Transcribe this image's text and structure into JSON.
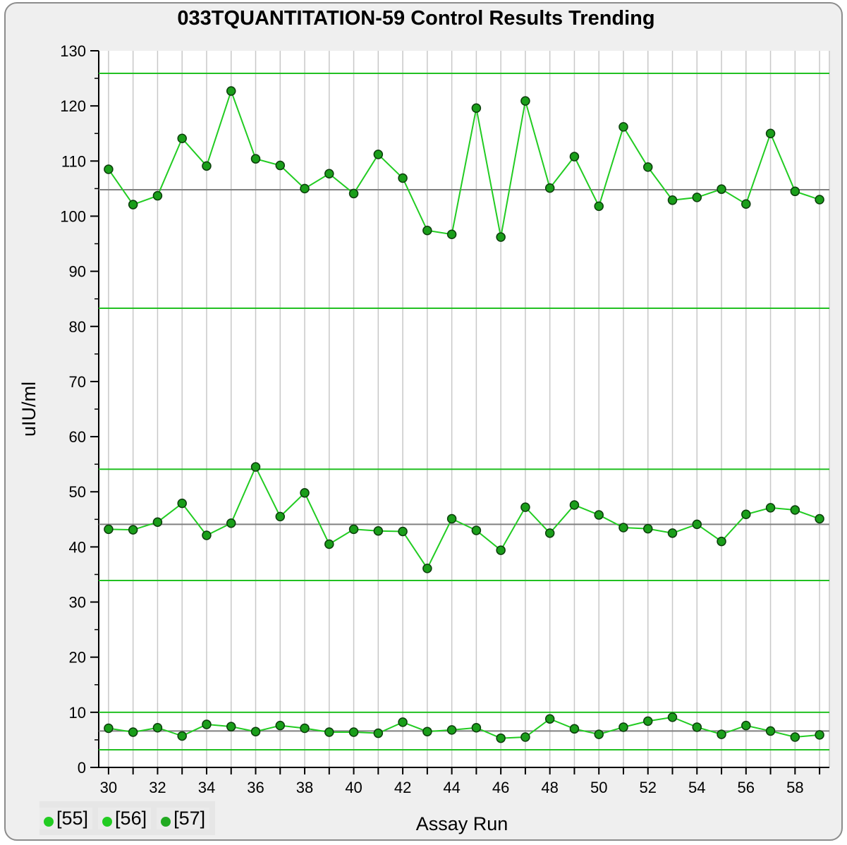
{
  "chart_data": {
    "type": "line",
    "title": "033TQUANTITATION-59 Control Results Trending",
    "xlabel": "Assay Run",
    "ylabel": "uIU/ml",
    "xlim": [
      29.6,
      59.4
    ],
    "ylim": [
      0,
      130
    ],
    "x_ticks": [
      30,
      32,
      34,
      36,
      38,
      40,
      42,
      44,
      46,
      48,
      50,
      52,
      54,
      56,
      58
    ],
    "y_ticks": [
      0,
      10,
      20,
      30,
      40,
      50,
      60,
      70,
      80,
      90,
      100,
      110,
      120,
      130
    ],
    "grid": true,
    "x": [
      30,
      31,
      32,
      33,
      34,
      35,
      36,
      37,
      38,
      39,
      40,
      41,
      42,
      43,
      44,
      45,
      46,
      47,
      48,
      49,
      50,
      51,
      52,
      53,
      54,
      55,
      56,
      57,
      58,
      59
    ],
    "series": [
      {
        "name": "[55]",
        "color": "#22cc22",
        "mean": 6.6,
        "upper_limit": 10,
        "lower_limit": 3.2,
        "values": [
          7.1,
          6.4,
          7.2,
          5.7,
          7.8,
          7.4,
          6.5,
          7.6,
          7.1,
          6.4,
          6.4,
          6.2,
          8.2,
          6.5,
          6.8,
          7.2,
          5.3,
          5.5,
          8.8,
          7.0,
          6.0,
          7.3,
          8.4,
          9.1,
          7.3,
          6.0,
          7.6,
          6.6,
          5.5,
          5.9
        ]
      },
      {
        "name": "[56]",
        "color": "#22cc22",
        "mean": 44.1,
        "upper_limit": 54.1,
        "lower_limit": 33.9,
        "values": [
          43.2,
          43.1,
          44.5,
          47.9,
          42.1,
          44.3,
          54.5,
          45.5,
          49.8,
          40.5,
          43.2,
          42.9,
          42.8,
          36.1,
          45.1,
          43.0,
          39.4,
          47.2,
          42.5,
          47.6,
          45.8,
          43.5,
          43.3,
          42.5,
          44.1,
          41.0,
          45.9,
          47.1,
          46.7,
          45.1
        ]
      },
      {
        "name": "[57]",
        "color": "#22cc22",
        "mean": 104.8,
        "upper_limit": 125.9,
        "lower_limit": 83.3,
        "values": [
          108.5,
          102.1,
          103.7,
          114.1,
          109.1,
          122.7,
          110.4,
          109.2,
          105.0,
          107.7,
          104.1,
          111.2,
          106.9,
          97.4,
          96.7,
          119.6,
          96.2,
          120.9,
          105.1,
          110.8,
          101.8,
          116.2,
          108.9,
          102.9,
          103.4,
          104.9,
          102.2,
          115.0,
          104.5,
          103.0
        ]
      }
    ],
    "legend": {
      "position": "bottom-left",
      "entries": [
        "[55]",
        "[56]",
        "[57]"
      ]
    }
  }
}
